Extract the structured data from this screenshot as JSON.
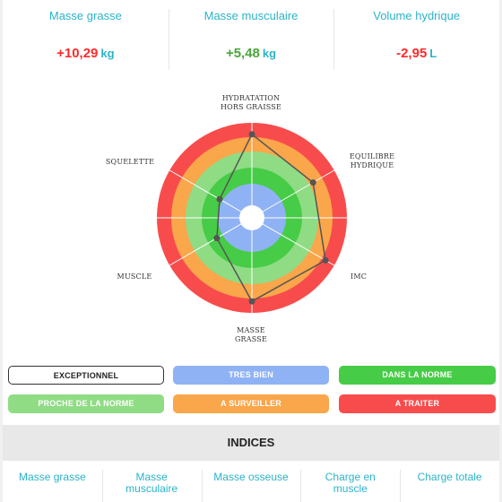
{
  "metrics": [
    {
      "title": "Masse grasse",
      "value": "+10,29",
      "unit": "kg",
      "color": "#ff2a2a"
    },
    {
      "title": "Masse musculaire",
      "value": "+5,48",
      "unit": "kg",
      "color": "#4aa63a"
    },
    {
      "title": "Volume hydrique",
      "value": "-2,95",
      "unit": "L",
      "color": "#ff2a2a"
    }
  ],
  "radar": {
    "labels": {
      "top": "HYDRATATION\nHORS GRAISSE",
      "top_right": "EQUILIBRE\nHYDRIQUE",
      "bottom_right": "IMC",
      "bottom": "MASSE\nGRASSE",
      "bottom_left": "MUSCLE",
      "top_left": "SQUELETTE"
    },
    "zone_colors": [
      "#8fb2f5",
      "#46cc46",
      "#8fdc85",
      "#faa64a",
      "#f84c4c"
    ],
    "axis_order": [
      "HYDRATATION HORS GRAISSE",
      "EQUILIBRE HYDRIQUE",
      "IMC",
      "MASSE GRASSE",
      "MUSCLE",
      "SQUELETTE"
    ],
    "levels": [
      4.2,
      3.3,
      4.3,
      4.2,
      1.4,
      1.2
    ]
  },
  "legend": [
    {
      "label": "EXCEPTIONNEL",
      "color": "#ffffff",
      "text_color": "#222222",
      "outlined": true
    },
    {
      "label": "TRES BIEN",
      "color": "#8fb2f5",
      "text_color": "#ffffff"
    },
    {
      "label": "DANS LA NORME",
      "color": "#46cc46",
      "text_color": "#ffffff"
    },
    {
      "label": "PROCHE DE LA NORME",
      "color": "#8fdc85",
      "text_color": "#ffffff"
    },
    {
      "label": "A SURVEILLER",
      "color": "#faa64a",
      "text_color": "#ffffff"
    },
    {
      "label": "A TRAITER",
      "color": "#f84c4c",
      "text_color": "#ffffff"
    }
  ],
  "indices": {
    "title": "INDICES",
    "items": [
      "Masse grasse",
      "Masse\nmusculaire",
      "Masse osseuse",
      "Charge en\nmuscle",
      "Charge totale"
    ]
  }
}
